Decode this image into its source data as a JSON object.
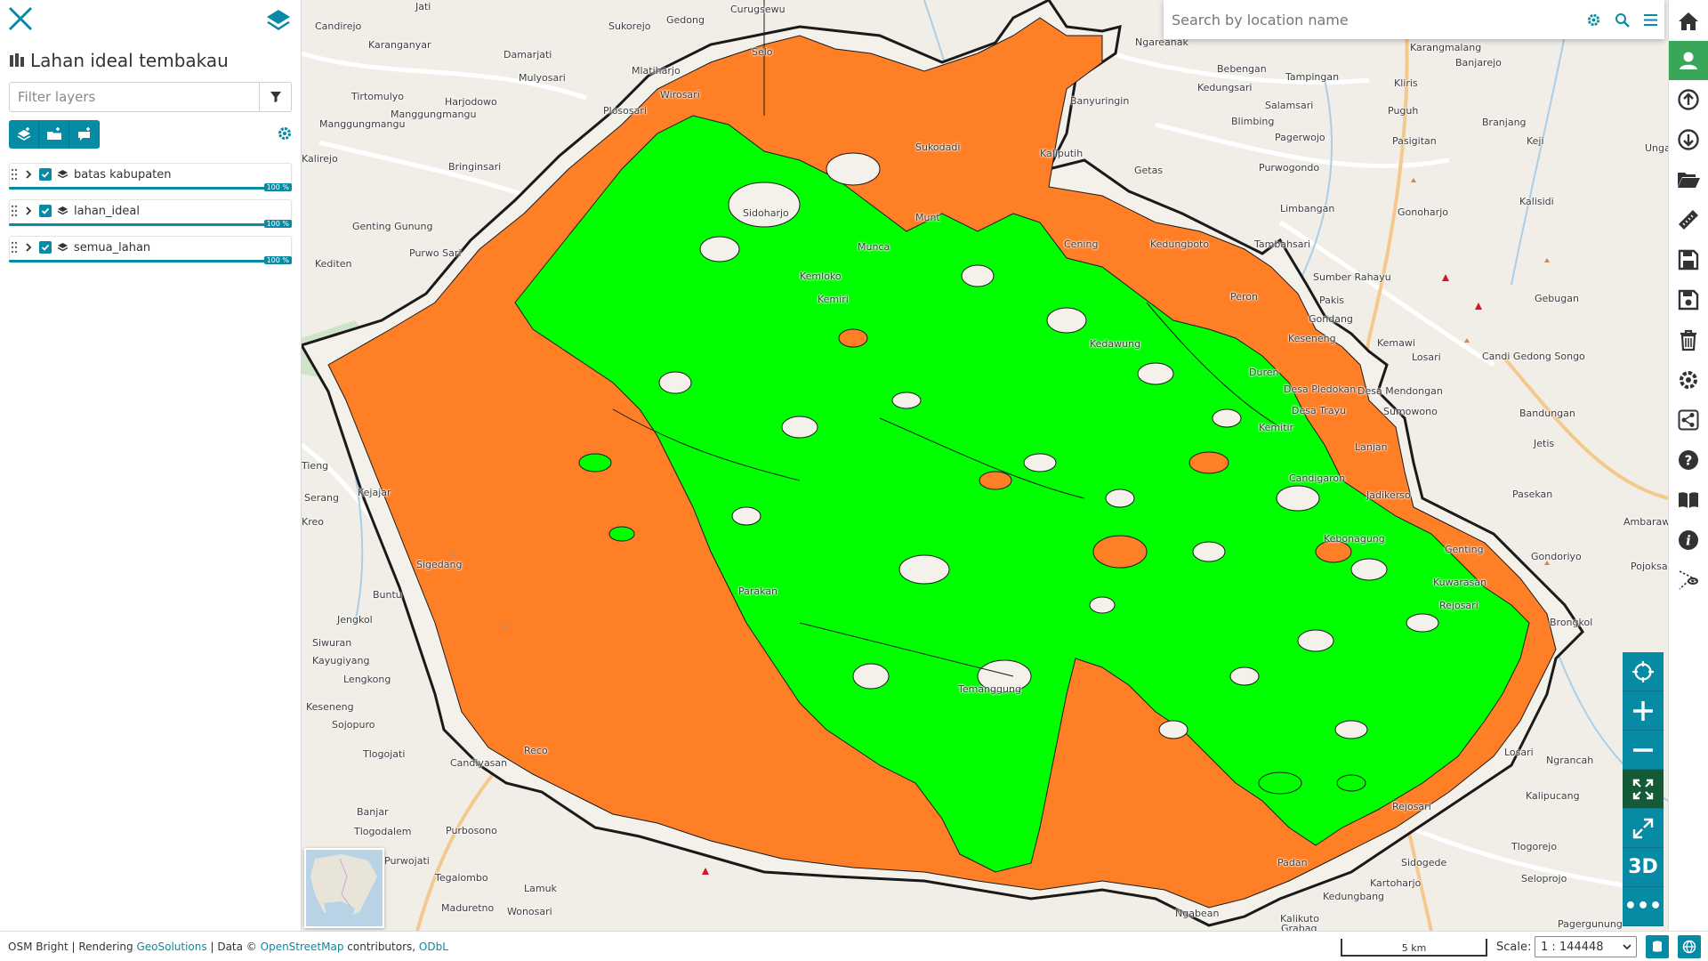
{
  "panel": {
    "title": "Lahan ideal tembakau",
    "filter_placeholder": "Filter layers",
    "layers": [
      {
        "name": "batas kabupaten",
        "opacity": "100 %"
      },
      {
        "name": "lahan_ideal",
        "opacity": "100 %"
      },
      {
        "name": "semua_lahan",
        "opacity": "100 %"
      }
    ]
  },
  "search": {
    "placeholder": "Search by location name"
  },
  "map": {
    "places": [
      {
        "name": "Candirejo",
        "col": 0
      },
      {
        "name": "Karanganyar"
      },
      {
        "name": "Jati"
      },
      {
        "name": "Sukorejo"
      },
      {
        "name": "Gedong"
      },
      {
        "name": "Curugsewu"
      },
      {
        "name": "Selo"
      },
      {
        "name": "Damarjati"
      },
      {
        "name": "Mulyosari"
      },
      {
        "name": "Mlatiharjo"
      },
      {
        "name": "Wirosari"
      },
      {
        "name": "Plososari"
      },
      {
        "name": "Tirtomulyo"
      },
      {
        "name": "Harjodowo"
      },
      {
        "name": "Manggungmangu"
      },
      {
        "name": "Bringinsari"
      },
      {
        "name": "Kalirejo"
      },
      {
        "name": "Sidoharjo"
      },
      {
        "name": "Munt"
      },
      {
        "name": "Munca"
      },
      {
        "name": "Kemloko"
      },
      {
        "name": "Kemiri"
      },
      {
        "name": "Genting Gunung"
      },
      {
        "name": "Purwo Sari"
      },
      {
        "name": "Kediten"
      },
      {
        "name": "Sukodadi"
      },
      {
        "name": "Kaliputih"
      },
      {
        "name": "Getas"
      },
      {
        "name": "Ngareanak"
      },
      {
        "name": "Banyuringin"
      },
      {
        "name": "Bebengan"
      },
      {
        "name": "Kedungsari"
      },
      {
        "name": "Tampingan"
      },
      {
        "name": "Salamsari"
      },
      {
        "name": "Blimbing"
      },
      {
        "name": "Karangmalang"
      },
      {
        "name": "Banjarejo"
      },
      {
        "name": "Kliris"
      },
      {
        "name": "Puguh"
      },
      {
        "name": "Branjang"
      },
      {
        "name": "Pagerwojo"
      },
      {
        "name": "Purwogondo"
      },
      {
        "name": "Pasigitan"
      },
      {
        "name": "Keji"
      },
      {
        "name": "Ungaran"
      },
      {
        "name": "Limbangan"
      },
      {
        "name": "Gonoharjo"
      },
      {
        "name": "Kalisidi"
      },
      {
        "name": "Cening"
      },
      {
        "name": "Kedungboto"
      },
      {
        "name": "Tambahsari"
      },
      {
        "name": "Sumber Rahayu"
      },
      {
        "name": "Peron"
      },
      {
        "name": "Pakis"
      },
      {
        "name": "Gondang"
      },
      {
        "name": "Gebugan"
      },
      {
        "name": "Kedawung"
      },
      {
        "name": "Keseneng"
      },
      {
        "name": "Kemawi"
      },
      {
        "name": "Losari"
      },
      {
        "name": "Candi Gedong Songo"
      },
      {
        "name": "Duren"
      },
      {
        "name": "Desa Pledokan"
      },
      {
        "name": "Desa Mendongan"
      },
      {
        "name": "Desa Trayu"
      },
      {
        "name": "Sumowono"
      },
      {
        "name": "Bandungan"
      },
      {
        "name": "Kemitir"
      },
      {
        "name": "Lanjan"
      },
      {
        "name": "Jetis"
      },
      {
        "name": "Candigaron"
      },
      {
        "name": "Pasekan"
      },
      {
        "name": "Jadikerso"
      },
      {
        "name": "Ambarawa"
      },
      {
        "name": "Kebonagung"
      },
      {
        "name": "Genting"
      },
      {
        "name": "Gondoriyo"
      },
      {
        "name": "Pojoksari"
      },
      {
        "name": "Kuwarasan"
      },
      {
        "name": "Rejosari"
      },
      {
        "name": "Brongkol"
      },
      {
        "name": "Ngrancah"
      },
      {
        "name": "Kalipucang"
      },
      {
        "name": "Sidogede"
      },
      {
        "name": "Tlogorejo"
      },
      {
        "name": "Kartoharjo"
      },
      {
        "name": "Seloprojo"
      },
      {
        "name": "Pagergunung"
      },
      {
        "name": "Kalikuto"
      },
      {
        "name": "Ngabean"
      },
      {
        "name": "Grabag"
      },
      {
        "name": "Tieng"
      },
      {
        "name": "Kejajar"
      },
      {
        "name": "Serang"
      },
      {
        "name": "Kreo"
      },
      {
        "name": "Sigedang"
      },
      {
        "name": "Buntu"
      },
      {
        "name": "Jengkol"
      },
      {
        "name": "Siwuran"
      },
      {
        "name": "Kayugiyang"
      },
      {
        "name": "Lengkong"
      },
      {
        "name": "Keseneng"
      },
      {
        "name": "Sojopuro"
      },
      {
        "name": "Tlogojati"
      },
      {
        "name": "Candiyasan"
      },
      {
        "name": "Banjar"
      },
      {
        "name": "Tlogodalem"
      },
      {
        "name": "Purbosono"
      },
      {
        "name": "Purwojati"
      },
      {
        "name": "Tegalombo"
      },
      {
        "name": "Lamuk"
      },
      {
        "name": "Maduretno"
      },
      {
        "name": "Wonosari"
      },
      {
        "name": "Parakan"
      },
      {
        "name": "Temanggung"
      },
      {
        "name": "Losari"
      },
      {
        "name": "Rejosari"
      },
      {
        "name": "Kedungbang"
      },
      {
        "name": "Padan"
      },
      {
        "name": "Reco"
      },
      {
        "name": "Manggungmangu"
      }
    ]
  },
  "footer": {
    "basemap": "OSM Bright",
    "rendering_prefix": "| Rendering",
    "rendering_link": "GeoSolutions",
    "data_prefix": "| Data ©",
    "data_link": "OpenStreetMap",
    "data_suffix": "contributors,",
    "license_link": "ODbL",
    "scale_bar_label": "5 km",
    "scale_label": "Scale:",
    "scale_value": "1 : 144448"
  },
  "map_controls": {
    "three_d_label": "3D",
    "more_label": "•••"
  },
  "colors": {
    "accent": "#078aa3",
    "active_green": "#3aa65a",
    "ideal_land": "#00ff00",
    "all_land": "#ff7f27",
    "boundary": "#1a1a1a"
  }
}
